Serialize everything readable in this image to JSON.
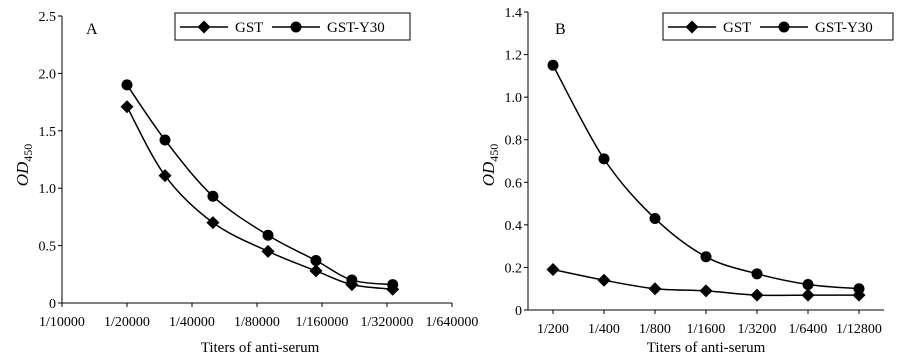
{
  "chart_data": [
    {
      "type": "line",
      "panel_label": "A",
      "xlabel": "Titers of anti-serum",
      "ylabel": "OD",
      "ylabel_sub": "450",
      "x_tick_labels": [
        "1/10000",
        "1/20000",
        "1/40000",
        "1/80000",
        "1/160000",
        "1/320000",
        "1/640000"
      ],
      "ylim": [
        0,
        2.5
      ],
      "y_ticks": [
        "0",
        "0.5",
        "1.0",
        "1.5",
        "2.0",
        "2.5"
      ],
      "legend_position": "top-right",
      "series": [
        {
          "name": "GST",
          "marker": "diamond",
          "x": [
            "1/20000",
            "1/30000",
            "1/50000",
            "1/90000",
            "1/150000",
            "1/220000",
            "1/340000"
          ],
          "values": [
            1.71,
            1.11,
            0.7,
            0.45,
            0.28,
            0.16,
            0.12
          ]
        },
        {
          "name": "GST-Y30",
          "marker": "circle",
          "x": [
            "1/20000",
            "1/30000",
            "1/50000",
            "1/90000",
            "1/150000",
            "1/220000",
            "1/340000"
          ],
          "values": [
            1.9,
            1.42,
            0.93,
            0.59,
            0.37,
            0.2,
            0.16
          ]
        }
      ]
    },
    {
      "type": "line",
      "panel_label": "B",
      "xlabel": "Titers of anti-serum",
      "ylabel": "OD",
      "ylabel_sub": "450",
      "categories": [
        "1/200",
        "1/400",
        "1/800",
        "1/1600",
        "1/3200",
        "1/6400",
        "1/12800"
      ],
      "x_tick_labels": [
        "1/200",
        "1/400",
        "1/800",
        "1/1600",
        "1/3200",
        "1/6400",
        "1/12800"
      ],
      "ylim": [
        0,
        1.4
      ],
      "y_ticks": [
        "0",
        "0.2",
        "0.4",
        "0.6",
        "0.8",
        "1.0",
        "1.2",
        "1.4"
      ],
      "legend_position": "top-right",
      "series": [
        {
          "name": "GST",
          "marker": "diamond",
          "values": [
            0.19,
            0.14,
            0.1,
            0.09,
            0.07,
            0.07,
            0.07
          ]
        },
        {
          "name": "GST-Y30",
          "marker": "circle",
          "values": [
            1.15,
            0.71,
            0.43,
            0.25,
            0.17,
            0.12,
            0.1
          ]
        }
      ]
    }
  ]
}
